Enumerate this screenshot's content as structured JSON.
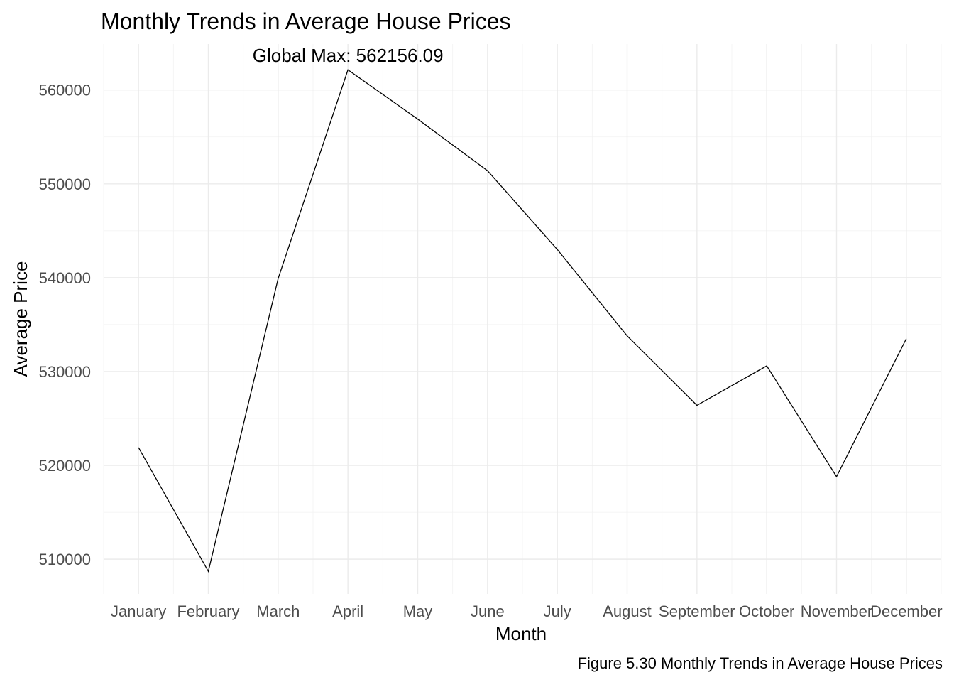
{
  "chart_data": {
    "type": "line",
    "title": "Monthly Trends in Average House Prices",
    "xlabel": "Month",
    "ylabel": "Average Price",
    "caption": "Figure 5.30 Monthly Trends in Average House Prices",
    "categories": [
      "January",
      "February",
      "March",
      "April",
      "May",
      "June",
      "July",
      "August",
      "September",
      "October",
      "November",
      "December"
    ],
    "series": [
      {
        "values": [
          521900,
          508700,
          539900,
          562156.09,
          556900,
          551400,
          543000,
          533800,
          526400,
          530600,
          518800,
          533500
        ]
      }
    ],
    "ylim": [
      506300,
      564900
    ],
    "yticks": [
      510000,
      520000,
      530000,
      540000,
      550000,
      560000
    ],
    "ytick_labels": [
      "510000",
      "520000",
      "530000",
      "540000",
      "550000",
      "560000"
    ],
    "annotation": {
      "text": "Global Max: 562156.09",
      "category": "April",
      "value": 562156.09
    },
    "grid": true,
    "line_color": "#000000"
  }
}
